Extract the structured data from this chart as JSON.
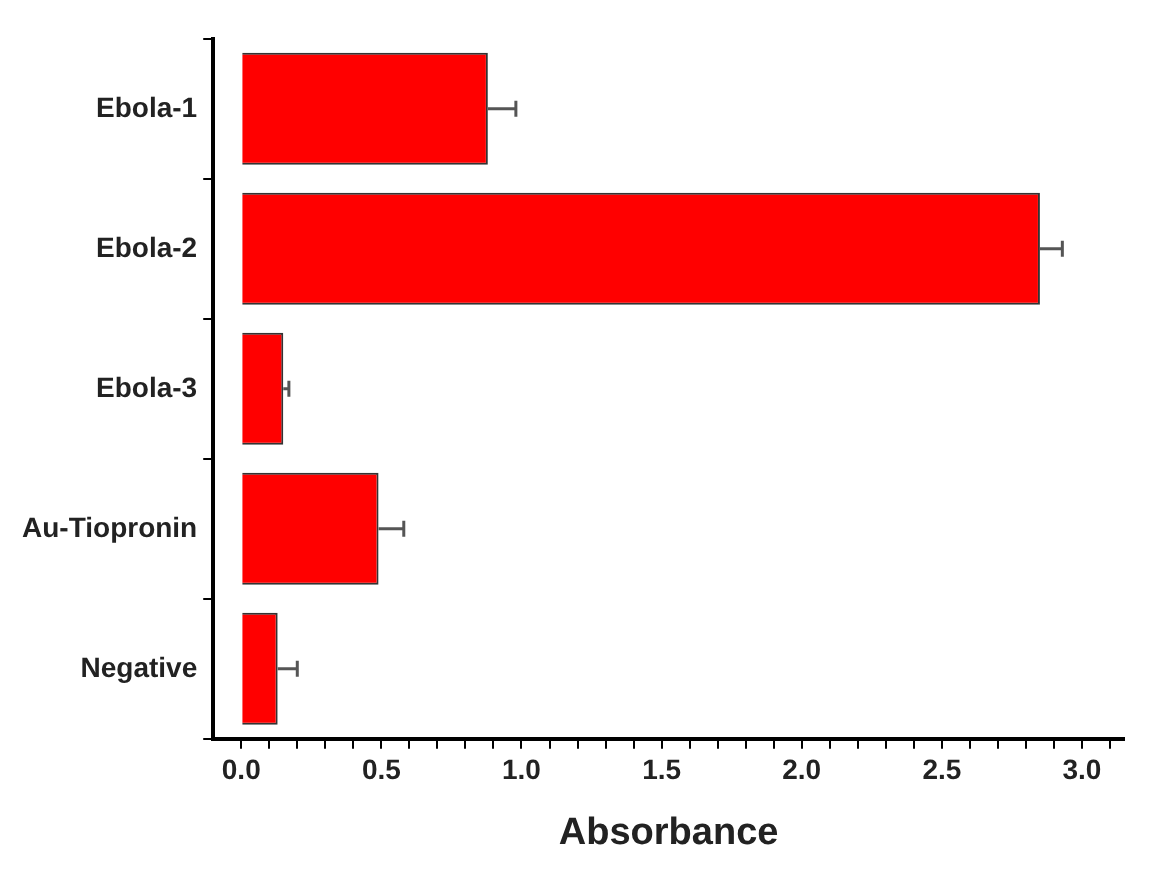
{
  "chart_data": {
    "type": "bar",
    "orientation": "horizontal",
    "xlabel": "Absorbance",
    "categories": [
      "Ebola-1",
      "Ebola-2",
      "Ebola-3",
      "Au-Tiopronin",
      "Negative"
    ],
    "values": [
      0.88,
      2.85,
      0.15,
      0.49,
      0.13
    ],
    "errors": [
      0.1,
      0.08,
      0.02,
      0.09,
      0.07
    ],
    "color": "#ff0000",
    "xlim": [
      -0.1,
      3.15
    ],
    "xticks": [
      {
        "value": 0.1,
        "label": null
      },
      {
        "value": 0.2,
        "label": null
      },
      {
        "value": 0.3,
        "label": null
      },
      {
        "value": 0.4,
        "label": null
      },
      {
        "value": 0,
        "label": "0.0"
      },
      {
        "value": 0.5,
        "label": "0.5"
      },
      {
        "value": 0.6,
        "label": null
      },
      {
        "value": 0.7,
        "label": null
      },
      {
        "value": 0.8,
        "label": null
      },
      {
        "value": 0.9,
        "label": null
      },
      {
        "value": 1,
        "label": "1.0"
      },
      {
        "value": 1.1,
        "label": null
      },
      {
        "value": 1.2,
        "label": null
      },
      {
        "value": 1.3,
        "label": null
      },
      {
        "value": 1.4,
        "label": null
      },
      {
        "value": 1.5,
        "label": "1.5"
      },
      {
        "value": 1.6,
        "label": null
      },
      {
        "value": 1.7,
        "label": null
      },
      {
        "value": 1.8,
        "label": null
      },
      {
        "value": 1.9,
        "label": null
      },
      {
        "value": 2,
        "label": "2.0"
      },
      {
        "value": 2.1,
        "label": null
      },
      {
        "value": 2.2,
        "label": null
      },
      {
        "value": 2.3,
        "label": null
      },
      {
        "value": 2.4,
        "label": null
      },
      {
        "value": 2.5,
        "label": "2.5"
      },
      {
        "value": 2.6,
        "label": null
      },
      {
        "value": 2.7,
        "label": null
      },
      {
        "value": 2.8,
        "label": null
      },
      {
        "value": 2.9,
        "label": null
      },
      {
        "value": 3,
        "label": "3.0"
      },
      {
        "value": 3.1,
        "label": null
      }
    ],
    "grid": false,
    "legend": false
  }
}
